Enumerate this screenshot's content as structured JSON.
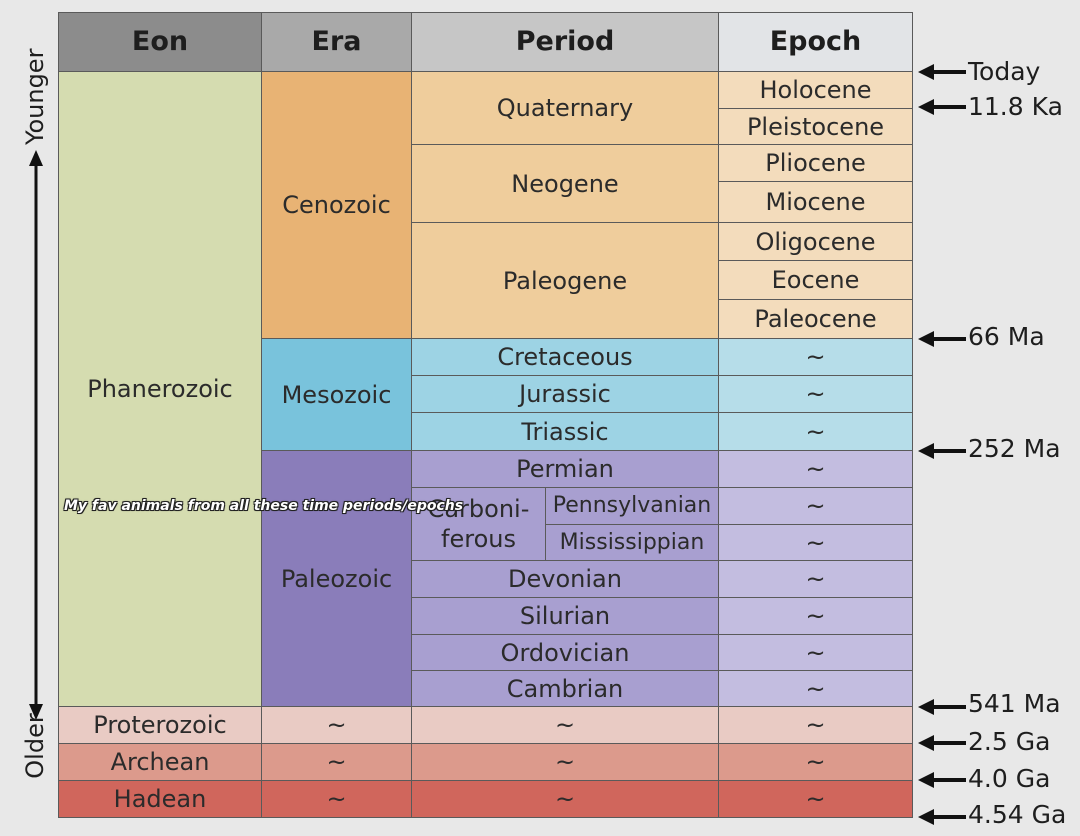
{
  "headers": {
    "eon": "Eon",
    "era": "Era",
    "period": "Period",
    "epoch": "Epoch"
  },
  "axis": {
    "younger": "Younger",
    "older": "Older"
  },
  "eons": {
    "phanerozoic": "Phanerozoic",
    "proterozoic": "Proterozoic",
    "archean": "Archean",
    "hadean": "Hadean"
  },
  "eras": {
    "cenozoic": "Cenozoic",
    "mesozoic": "Mesozoic",
    "paleozoic": "Paleozoic"
  },
  "periods": {
    "quaternary": "Quaternary",
    "neogene": "Neogene",
    "paleogene": "Paleogene",
    "cretaceous": "Cretaceous",
    "jurassic": "Jurassic",
    "triassic": "Triassic",
    "permian": "Permian",
    "carboniferous_1": "Carboni-",
    "carboniferous_2": "ferous",
    "pennsylvanian": "Pennsylvanian",
    "mississippian": "Mississippian",
    "devonian": "Devonian",
    "silurian": "Silurian",
    "ordovician": "Ordovician",
    "cambrian": "Cambrian"
  },
  "epochs": {
    "holocene": "Holocene",
    "pleistocene": "Pleistocene",
    "pliocene": "Pliocene",
    "miocene": "Miocene",
    "oligocene": "Oligocene",
    "eocene": "Eocene",
    "paleocene": "Paleocene"
  },
  "placeholder": "~",
  "time_markers": [
    "Today",
    "11.8 Ka",
    "66 Ma",
    "252 Ma",
    "541 Ma",
    "2.5 Ga",
    "4.0 Ga",
    "4.54 Ga"
  ],
  "caption": "My fav animals from all these time periods/epochs",
  "colors": {
    "header_eon": "#8c8c8c",
    "header_era": "#a9a9a9",
    "header_period": "#c6c6c6",
    "header_epoch": "#e2e4e7",
    "phanerozoic": "#d5dcb0",
    "cenozoic": "#e8b374",
    "cenozoic_light": "#efcd9c",
    "cenozoic_epoch": "#f3dcbc",
    "mesozoic": "#79c3dc",
    "mesozoic_light": "#9dd3e4",
    "mesozoic_epoch": "#b6dde9",
    "paleozoic": "#8a7dba",
    "paleozoic_light": "#a89fd0",
    "paleozoic_epoch": "#c3bde0",
    "proterozoic": "#e9cbc4",
    "archean": "#dc9a8c",
    "hadean": "#d0665c"
  }
}
